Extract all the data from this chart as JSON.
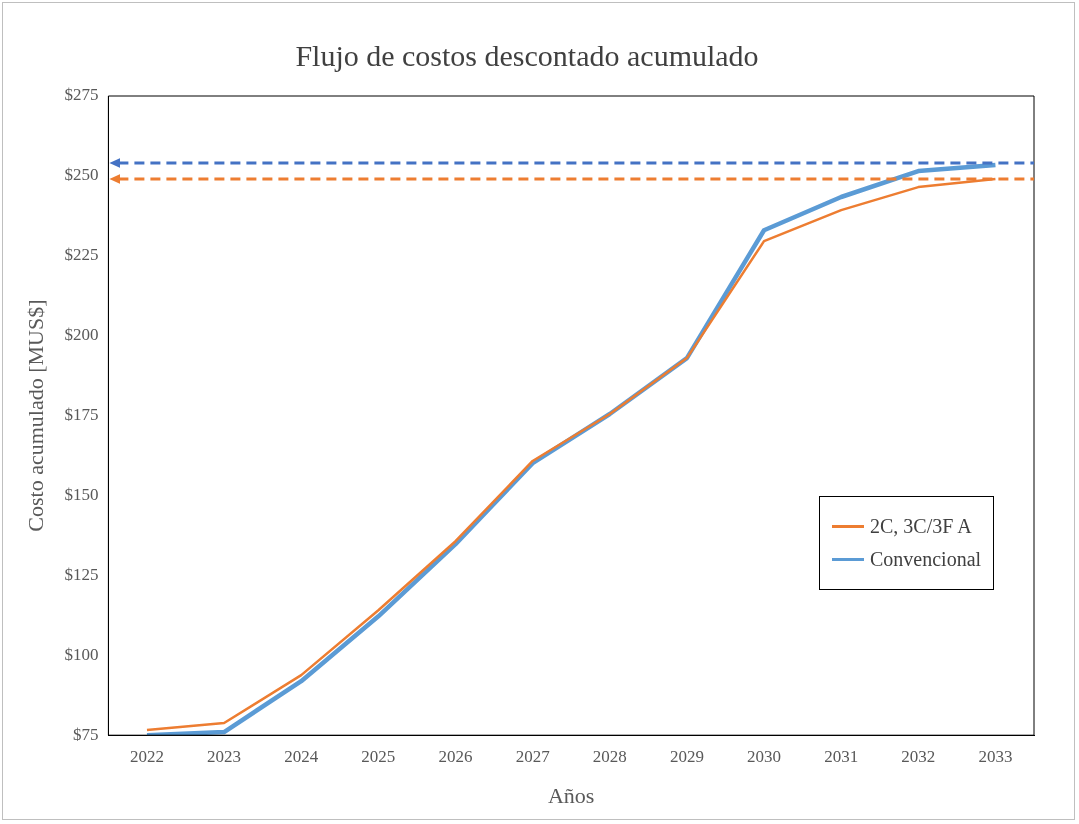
{
  "chart_data": {
    "type": "line",
    "title": "Flujo de costos descontado acumulado",
    "xlabel": "Años",
    "ylabel": "Costo acumulado [MUS$]",
    "categories": [
      "2022",
      "2023",
      "2024",
      "2025",
      "2026",
      "2027",
      "2028",
      "2029",
      "2030",
      "2031",
      "2032",
      "2033"
    ],
    "series": [
      {
        "name": "2C, 3C/3F A",
        "color": "#ed7d31",
        "values": [
          76.6,
          78.8,
          93.8,
          114.1,
          135.7,
          160.8,
          175.5,
          193,
          229.6,
          239.3,
          246.5,
          249
        ]
      },
      {
        "name": "Convencional",
        "color": "#5b9bd5",
        "values": [
          75,
          76,
          91.9,
          112.2,
          134.8,
          160.1,
          175.5,
          193,
          233,
          243.4,
          251.5,
          253.4
        ]
      }
    ],
    "ylim": [
      75,
      275
    ],
    "yticks": [
      {
        "value": 75,
        "label": "$75"
      },
      {
        "value": 100,
        "label": "$100"
      },
      {
        "value": 125,
        "label": "$125"
      },
      {
        "value": 150,
        "label": "$150"
      },
      {
        "value": 175,
        "label": "$175"
      },
      {
        "value": 200,
        "label": "$200"
      },
      {
        "value": 225,
        "label": "$225"
      },
      {
        "value": 250,
        "label": "$250"
      },
      {
        "value": 275,
        "label": "$275"
      }
    ],
    "ref_lines": [
      {
        "axis": "y",
        "value": 254,
        "color": "#4472c4",
        "line_style": "dashed"
      },
      {
        "axis": "y",
        "value": 249,
        "color": "#ed7d31",
        "line_style": "dashed"
      }
    ],
    "grid": false,
    "legend": "right",
    "marker": "none",
    "line_style": "solid"
  }
}
